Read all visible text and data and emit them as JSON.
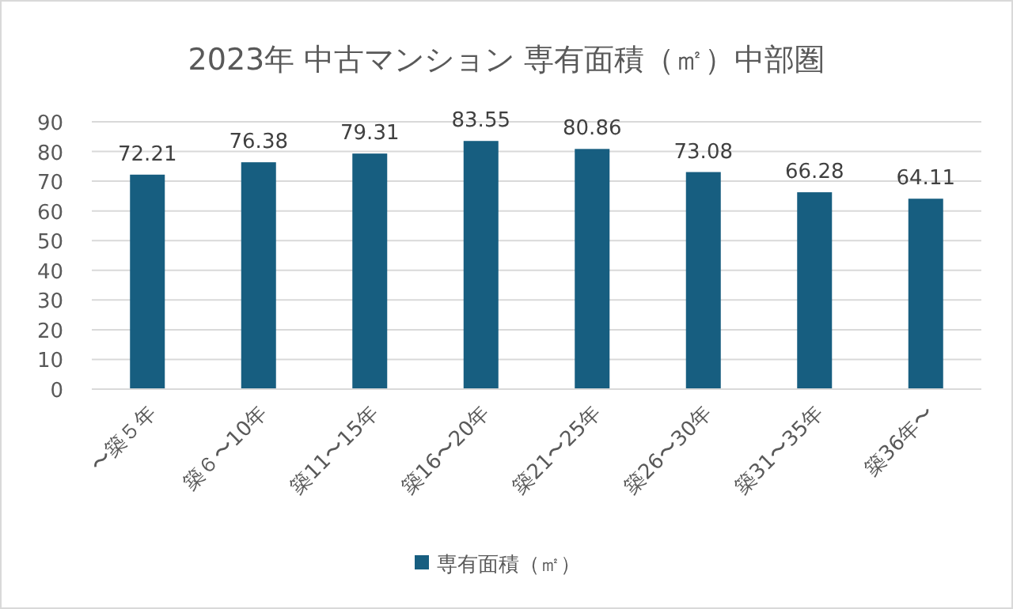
{
  "chart_data": {
    "type": "bar",
    "title": "2023年 中古マンション 専有面積（㎡）中部圏",
    "categories": [
      "〜築５年",
      "築６〜10年",
      "築11〜15年",
      "築16〜20年",
      "築21〜25年",
      "築26〜30年",
      "築31〜35年",
      "築36年〜"
    ],
    "series": [
      {
        "name": "専有面積（㎡）",
        "color": "#175e80",
        "values": [
          72.21,
          76.38,
          79.31,
          83.55,
          80.86,
          73.08,
          66.28,
          64.11
        ]
      }
    ],
    "ylim": [
      0,
      90
    ],
    "yticks": [
      0,
      10,
      20,
      30,
      40,
      50,
      60,
      70,
      80,
      90
    ],
    "grid": "y",
    "legend": "bottom",
    "data_labels": true
  }
}
